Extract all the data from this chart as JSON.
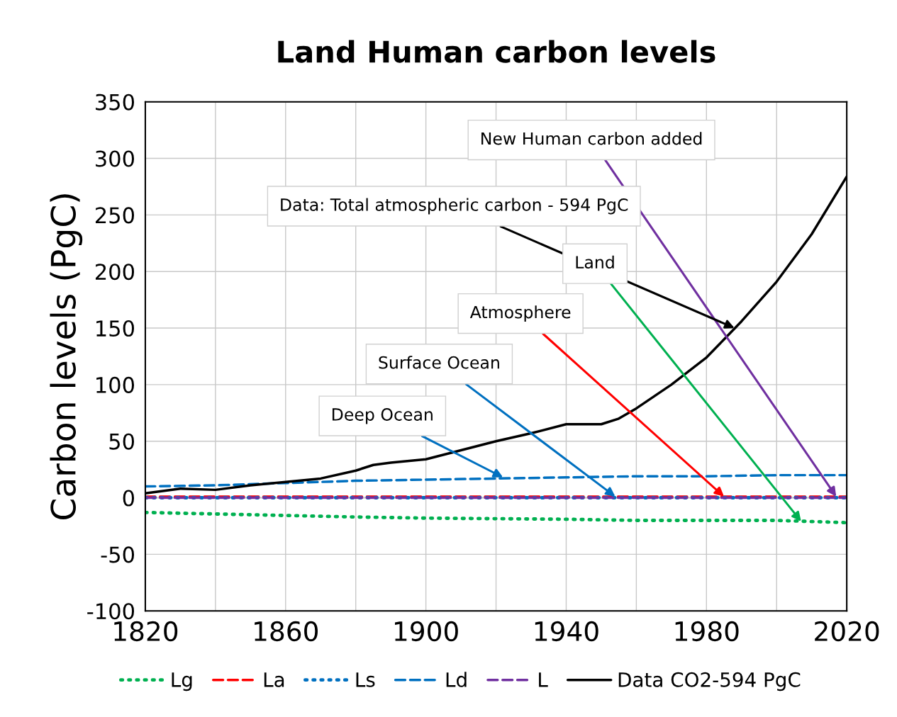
{
  "chart_data": {
    "type": "line",
    "title": "Land Human carbon levels",
    "ylabel": "Carbon levels (PgC)",
    "xlim": [
      1820,
      2020
    ],
    "ylim": [
      -100,
      350
    ],
    "xticks": [
      1820,
      {
        "value": 1840,
        "label": null
      },
      1860,
      {
        "value": 1880,
        "label": null
      },
      1900,
      {
        "value": 1920,
        "label": null
      },
      1940,
      {
        "value": 1960,
        "label": null
      },
      1980,
      {
        "value": 2000,
        "label": null
      },
      2020
    ],
    "yticks": [
      -100,
      -50,
      0,
      50,
      100,
      150,
      200,
      250,
      300,
      350
    ],
    "grid": true,
    "legend": "bottom",
    "series": [
      {
        "name": "Lg",
        "color": "#00b050",
        "line_style": "dotted",
        "x": [
          1820,
          1850,
          1880,
          1900,
          1940,
          1960,
          2000,
          2020
        ],
        "values": [
          -13,
          -15,
          -17,
          -18,
          -19,
          -20,
          -20,
          -22
        ]
      },
      {
        "name": "La",
        "color": "#ff0000",
        "line_style": "dashed",
        "x": [
          1820,
          1870,
          1920,
          1970,
          2020
        ],
        "values": [
          1,
          1,
          1,
          1,
          1
        ]
      },
      {
        "name": "Ls",
        "color": "#0070c0",
        "line_style": "dotted",
        "x": [
          1820,
          1870,
          1920,
          1970,
          2020
        ],
        "values": [
          0,
          0,
          0,
          0,
          0
        ]
      },
      {
        "name": "Ld",
        "color": "#0070c0",
        "line_style": "dashed",
        "x": [
          1820,
          1840,
          1860,
          1880,
          1900,
          1920,
          1940,
          1960,
          1980,
          2000,
          2020
        ],
        "values": [
          10,
          11,
          13,
          15,
          16,
          17,
          18,
          19,
          19,
          20,
          20
        ]
      },
      {
        "name": "L",
        "color": "#7030a0",
        "line_style": "dashed",
        "x": [
          1820,
          1870,
          1920,
          1970,
          2020
        ],
        "values": [
          0,
          0,
          0,
          0,
          0
        ]
      },
      {
        "name": "Data CO2-594 PgC",
        "color": "#000000",
        "line_style": "solid",
        "x": [
          1820,
          1830,
          1840,
          1850,
          1860,
          1870,
          1880,
          1885,
          1890,
          1900,
          1910,
          1920,
          1930,
          1940,
          1950,
          1955,
          1960,
          1970,
          1980,
          1990,
          2000,
          2010,
          2020
        ],
        "values": [
          4,
          8,
          7,
          11,
          14,
          17,
          24,
          29,
          31,
          34,
          42,
          50,
          57,
          65,
          65,
          70,
          79,
          100,
          124,
          156,
          191,
          233,
          284
        ]
      }
    ],
    "annotations": [
      {
        "text": "New Human carbon added",
        "x": 2017,
        "y": 1
      },
      {
        "text": "Data: Total atmospheric carbon - 594 PgC",
        "x": 1988,
        "y": 150
      },
      {
        "text": "Land",
        "x": 2007,
        "y": -21
      },
      {
        "text": "Atmosphere",
        "x": 1985,
        "y": 1
      },
      {
        "text": "Surface Ocean",
        "x": 1954,
        "y": 1
      },
      {
        "text": "Deep Ocean",
        "x": 1922,
        "y": 18
      }
    ]
  }
}
